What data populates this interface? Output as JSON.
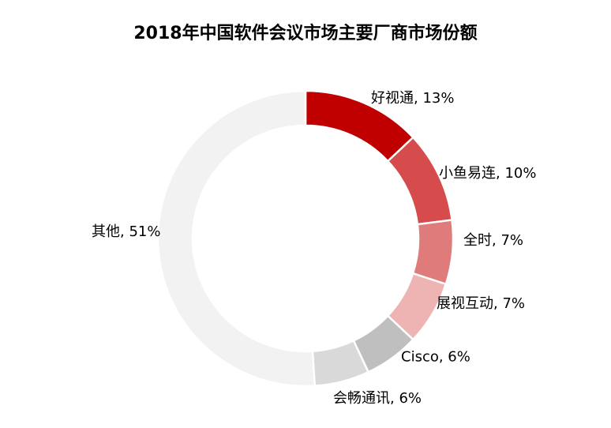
{
  "chart_data": {
    "type": "pie",
    "variant": "donut",
    "title": "2018年中国软件会议市场主要厂商市场份额",
    "categories": [
      "好视通",
      "小鱼易连",
      "全时",
      "展视互动",
      "Cisco",
      "会畅通讯",
      "其他"
    ],
    "values": [
      13,
      10,
      7,
      7,
      6,
      6,
      51
    ],
    "unit": "%",
    "colors": [
      "#C00000",
      "#D64B4B",
      "#E07B7B",
      "#EEB4B4",
      "#BFBFBF",
      "#D9D9D9",
      "#F2F2F2"
    ],
    "start": "top",
    "direction": "clockwise",
    "legend": "none",
    "data_labels": "outside"
  }
}
